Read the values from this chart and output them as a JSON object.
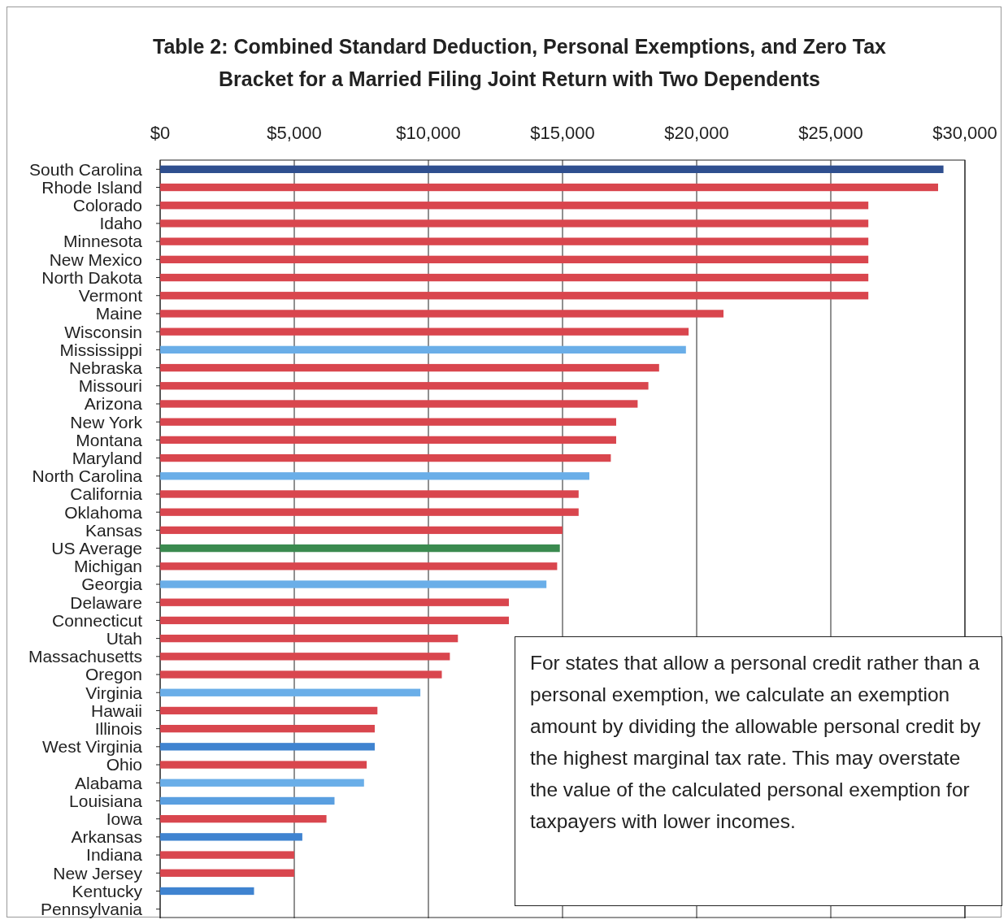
{
  "chart_data": {
    "type": "bar",
    "orientation": "horizontal",
    "title": "Table 2:  Combined Standard Deduction, Personal Exemptions, and Zero Tax Bracket for a Married Filing Joint Return with Two Dependents",
    "categories": [
      "South Carolina",
      "Rhode Island",
      "Colorado",
      "Idaho",
      "Minnesota",
      "New Mexico",
      "North Dakota",
      "Vermont",
      "Maine",
      "Wisconsin",
      "Mississippi",
      "Nebraska",
      "Missouri",
      "Arizona",
      "New York",
      "Montana",
      "Maryland",
      "North Carolina",
      "California",
      "Oklahoma",
      "Kansas",
      "US Average",
      "Michigan",
      "Georgia",
      "Delaware",
      "Connecticut",
      "Utah",
      "Massachusetts",
      "Oregon",
      "Virginia",
      "Hawaii",
      "Illinois",
      "West Virginia",
      "Ohio",
      "Alabama",
      "Louisiana",
      "Iowa",
      "Arkansas",
      "Indiana",
      "New Jersey",
      "Kentucky",
      "Pennsylvania"
    ],
    "values": [
      29200,
      29000,
      26400,
      26400,
      26400,
      26400,
      26400,
      26400,
      21000,
      19700,
      19600,
      18600,
      18200,
      17800,
      17000,
      17000,
      16800,
      16000,
      15600,
      15600,
      15000,
      14900,
      14800,
      14400,
      13000,
      13000,
      11100,
      10800,
      10500,
      9700,
      8100,
      8000,
      8000,
      7700,
      7600,
      6500,
      6200,
      5300,
      5000,
      5000,
      3500,
      0
    ],
    "colors": [
      "#2f4f8f",
      "#d9464e",
      "#d9464e",
      "#d9464e",
      "#d9464e",
      "#d9464e",
      "#d9464e",
      "#d9464e",
      "#d9464e",
      "#d9464e",
      "#6aaee8",
      "#d9464e",
      "#d9464e",
      "#d9464e",
      "#d9464e",
      "#d9464e",
      "#d9464e",
      "#6aaee8",
      "#d9464e",
      "#d9464e",
      "#d9464e",
      "#3a8a4f",
      "#d9464e",
      "#6aaee8",
      "#d9464e",
      "#d9464e",
      "#d9464e",
      "#d9464e",
      "#d9464e",
      "#6aaee8",
      "#d9464e",
      "#d9464e",
      "#3f83d0",
      "#d9464e",
      "#6aaee8",
      "#5a9fe0",
      "#d9464e",
      "#3f83d0",
      "#d9464e",
      "#d9464e",
      "#3f83d0",
      "#d9464e"
    ],
    "xlim": [
      0,
      30000
    ],
    "xticks": [
      {
        "value": 0,
        "label": "$0"
      },
      {
        "value": 5000,
        "label": "$5,000"
      },
      {
        "value": 10000,
        "label": "$10,000"
      },
      {
        "value": 15000,
        "label": "$15,000"
      },
      {
        "value": 20000,
        "label": "$20,000"
      },
      {
        "value": 25000,
        "label": "$25,000"
      },
      {
        "value": 30000,
        "label": "$30,000"
      }
    ],
    "grid": "x",
    "annotations": [
      "For states that allow a personal credit rather than a personal exemption, we calculate an exemption amount by dividing the allowable personal credit by the highest marginal tax rate.  This may overstate the value of the calculated personal exemption for taxpayers with lower incomes."
    ]
  }
}
